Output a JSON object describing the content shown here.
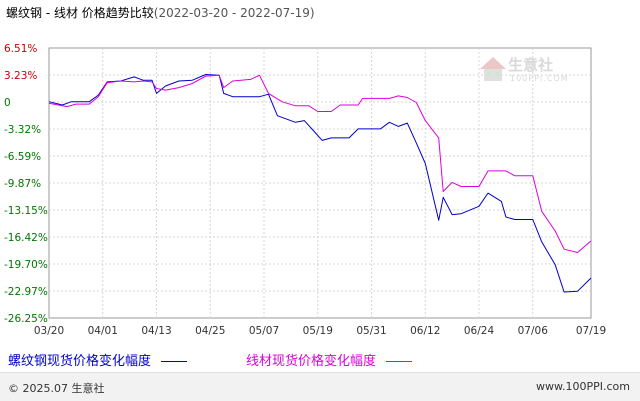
{
  "header": {
    "title": "螺纹钢 - 线材 价格趋势比较",
    "date_range": "(2022-03-20 - 2022-07-19)"
  },
  "watermark": {
    "name": "生意社",
    "sub": "100PPI.COM"
  },
  "legend": {
    "items": [
      {
        "label": "螺纹钢现货价格变化幅度",
        "color": "#0000cc"
      },
      {
        "label": "线材现货价格变化幅度",
        "color": "#dd00dd"
      }
    ]
  },
  "footer": {
    "copyright": "© 2025.07 生意社",
    "site": "www.100PPI.com"
  },
  "chart_data": {
    "type": "line",
    "title": "螺纹钢 - 线材 价格趋势比较",
    "y_ticks": [
      "6.51%",
      "3.23%",
      "0",
      "-3.32%",
      "-6.59%",
      "-9.87%",
      "-13.15%",
      "-16.42%",
      "-19.70%",
      "-22.97%",
      "-26.25%"
    ],
    "ylim": [
      -26.25,
      6.51
    ],
    "x_ticks": [
      "03/20",
      "04/01",
      "04/13",
      "04/25",
      "05/07",
      "05/19",
      "05/31",
      "06/12",
      "06/24",
      "07/06",
      "07/19"
    ],
    "grid": true,
    "legend_position": "bottom",
    "series": [
      {
        "name": "螺纹钢现货价格变化幅度",
        "color": "#0000cc",
        "points": [
          [
            "03/20",
            0.0
          ],
          [
            "03/23",
            -0.4
          ],
          [
            "03/25",
            0.0
          ],
          [
            "03/29",
            0.0
          ],
          [
            "03/31",
            0.8
          ],
          [
            "04/02",
            2.4
          ],
          [
            "04/05",
            2.5
          ],
          [
            "04/08",
            3.0
          ],
          [
            "04/10",
            2.6
          ],
          [
            "04/12",
            2.6
          ],
          [
            "04/13",
            1.0
          ],
          [
            "04/15",
            1.9
          ],
          [
            "04/18",
            2.5
          ],
          [
            "04/21",
            2.6
          ],
          [
            "04/24",
            3.3
          ],
          [
            "04/27",
            3.2
          ],
          [
            "04/28",
            1.0
          ],
          [
            "04/30",
            0.6
          ],
          [
            "05/06",
            0.6
          ],
          [
            "05/08",
            0.9
          ],
          [
            "05/10",
            -1.7
          ],
          [
            "05/14",
            -2.5
          ],
          [
            "05/16",
            -2.3
          ],
          [
            "05/18",
            -3.5
          ],
          [
            "05/20",
            -4.7
          ],
          [
            "05/22",
            -4.4
          ],
          [
            "05/26",
            -4.4
          ],
          [
            "05/28",
            -3.3
          ],
          [
            "06/02",
            -3.3
          ],
          [
            "06/04",
            -2.5
          ],
          [
            "06/06",
            -3.0
          ],
          [
            "06/08",
            -2.6
          ],
          [
            "06/10",
            -5.0
          ],
          [
            "06/12",
            -7.5
          ],
          [
            "06/15",
            -14.4
          ],
          [
            "06/16",
            -11.6
          ],
          [
            "06/18",
            -13.7
          ],
          [
            "06/20",
            -13.6
          ],
          [
            "06/24",
            -12.7
          ],
          [
            "06/26",
            -11.1
          ],
          [
            "06/29",
            -12.1
          ],
          [
            "06/30",
            -14.0
          ],
          [
            "07/02",
            -14.3
          ],
          [
            "07/06",
            -14.3
          ],
          [
            "07/08",
            -17.0
          ],
          [
            "07/11",
            -19.8
          ],
          [
            "07/13",
            -23.1
          ],
          [
            "07/16",
            -23.0
          ],
          [
            "07/19",
            -21.4
          ]
        ]
      },
      {
        "name": "线材现货价格变化幅度",
        "color": "#dd00dd",
        "points": [
          [
            "03/20",
            -0.2
          ],
          [
            "03/24",
            -0.6
          ],
          [
            "03/26",
            -0.3
          ],
          [
            "03/29",
            -0.3
          ],
          [
            "03/31",
            0.6
          ],
          [
            "04/02",
            2.3
          ],
          [
            "04/05",
            2.5
          ],
          [
            "04/08",
            2.4
          ],
          [
            "04/10",
            2.5
          ],
          [
            "04/12",
            2.4
          ],
          [
            "04/13",
            1.6
          ],
          [
            "04/15",
            1.4
          ],
          [
            "04/18",
            1.7
          ],
          [
            "04/21",
            2.2
          ],
          [
            "04/24",
            3.1
          ],
          [
            "04/27",
            3.2
          ],
          [
            "04/28",
            1.7
          ],
          [
            "04/30",
            2.5
          ],
          [
            "05/04",
            2.7
          ],
          [
            "05/06",
            3.2
          ],
          [
            "05/08",
            1.0
          ],
          [
            "05/11",
            0.0
          ],
          [
            "05/14",
            -0.5
          ],
          [
            "05/17",
            -0.5
          ],
          [
            "05/19",
            -1.2
          ],
          [
            "05/22",
            -1.2
          ],
          [
            "05/24",
            -0.4
          ],
          [
            "05/28",
            -0.4
          ],
          [
            "05/29",
            0.4
          ],
          [
            "06/04",
            0.4
          ],
          [
            "06/06",
            0.7
          ],
          [
            "06/08",
            0.5
          ],
          [
            "06/10",
            -0.1
          ],
          [
            "06/12",
            -2.3
          ],
          [
            "06/15",
            -4.4
          ],
          [
            "06/16",
            -10.9
          ],
          [
            "06/18",
            -9.8
          ],
          [
            "06/20",
            -10.3
          ],
          [
            "06/24",
            -10.3
          ],
          [
            "06/26",
            -8.4
          ],
          [
            "06/30",
            -8.4
          ],
          [
            "07/02",
            -9.0
          ],
          [
            "07/06",
            -9.0
          ],
          [
            "07/08",
            -13.3
          ],
          [
            "07/11",
            -15.7
          ],
          [
            "07/13",
            -17.9
          ],
          [
            "07/16",
            -18.3
          ],
          [
            "07/19",
            -16.9
          ]
        ]
      }
    ]
  }
}
